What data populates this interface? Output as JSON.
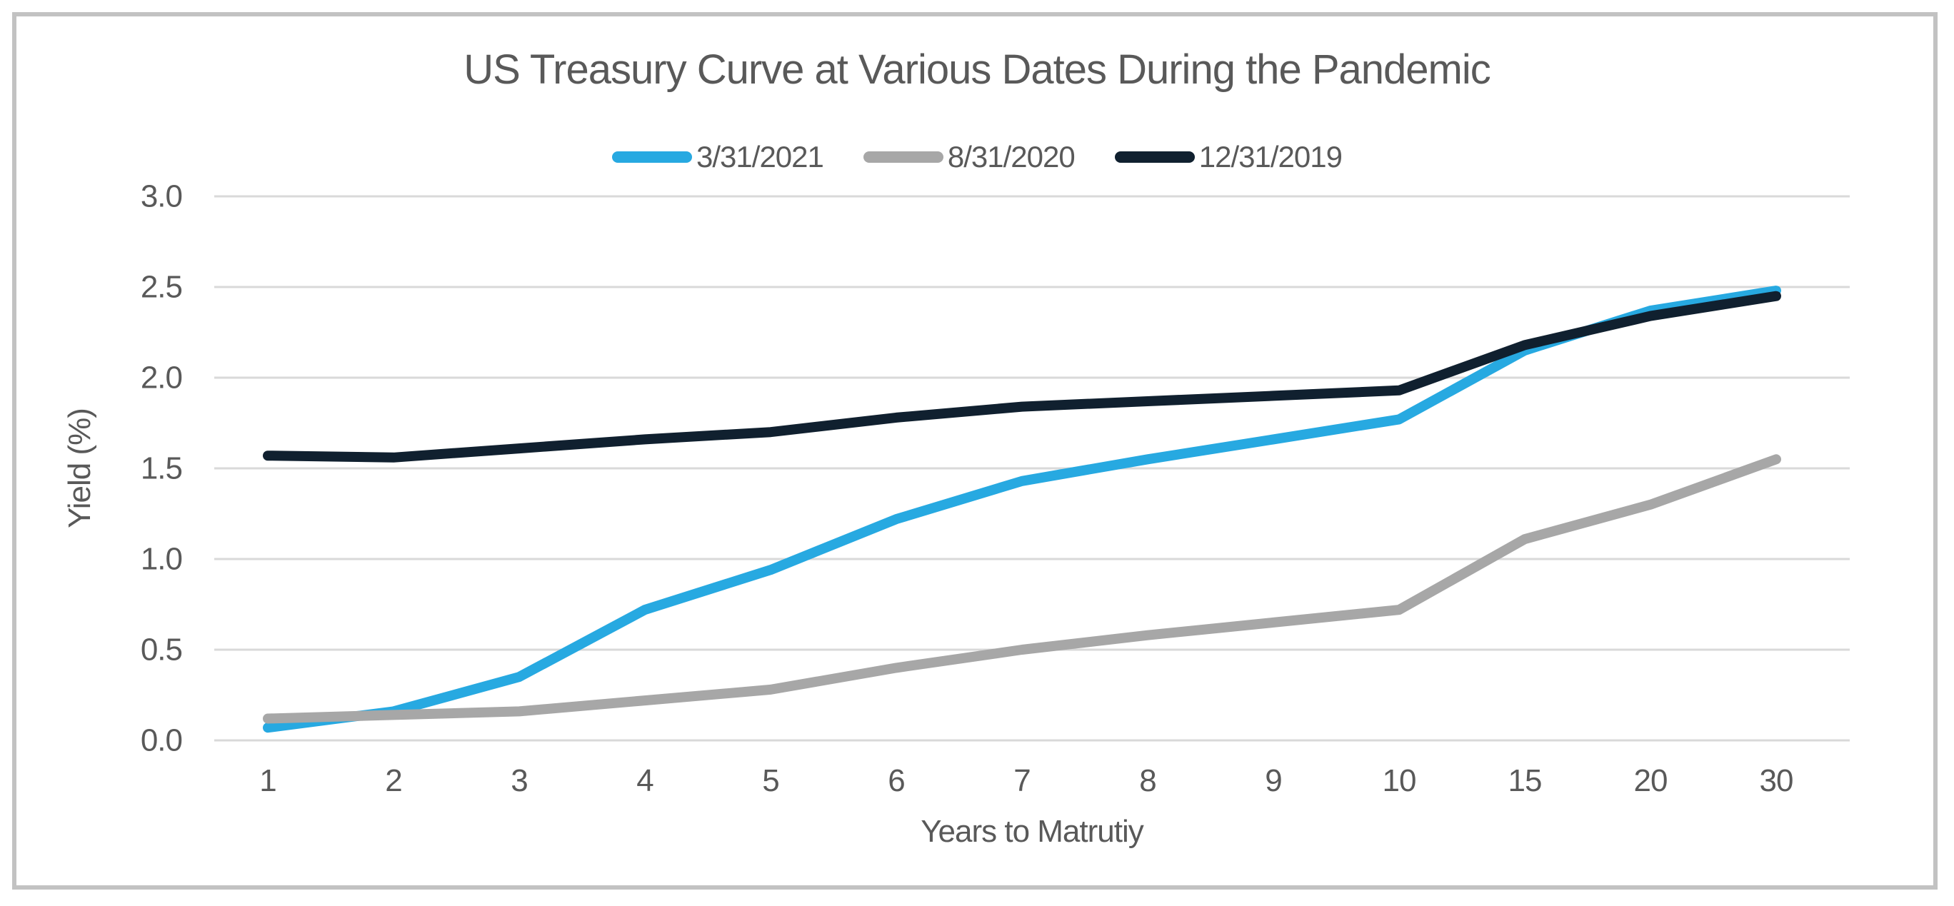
{
  "card": {
    "border_color": "#c2c2c2",
    "background": "#ffffff"
  },
  "chart_data": {
    "type": "line",
    "title": "US Treasury Curve at Various Dates During the Pandemic",
    "xlabel": "Years to Matrutiy",
    "ylabel": "Yield (%)",
    "categories": [
      1,
      2,
      3,
      4,
      5,
      6,
      7,
      8,
      9,
      10,
      15,
      20,
      30
    ],
    "series": [
      {
        "name": "3/31/2021",
        "color": "#27a9e1",
        "values": [
          0.07,
          0.16,
          0.35,
          0.72,
          0.94,
          1.22,
          1.43,
          1.55,
          1.66,
          1.77,
          2.15,
          2.37,
          2.48
        ]
      },
      {
        "name": "8/31/2020",
        "color": "#a7a7a7",
        "values": [
          0.12,
          0.14,
          0.16,
          0.22,
          0.28,
          0.4,
          0.5,
          0.58,
          0.65,
          0.72,
          1.11,
          1.3,
          1.55
        ]
      },
      {
        "name": "12/31/2019",
        "color": "#10202f",
        "values": [
          1.57,
          1.56,
          1.61,
          1.66,
          1.7,
          1.78,
          1.84,
          1.87,
          1.9,
          1.93,
          2.18,
          2.34,
          2.45
        ]
      }
    ],
    "yticks": [
      "0.0",
      "0.5",
      "1.0",
      "1.5",
      "2.0",
      "2.5",
      "3.0"
    ],
    "ylim": [
      0.0,
      3.0
    ],
    "grid": "horizontal",
    "gridline_color": "#d9d9d9",
    "text_color": "#595959",
    "legend_position": "top"
  }
}
